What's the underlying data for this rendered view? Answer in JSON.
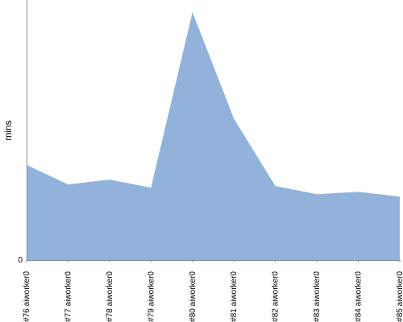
{
  "chart_data": {
    "type": "area",
    "title": "",
    "xlabel": "",
    "ylabel": "mins",
    "categories": [
      "#76 aiworker0",
      "#77 aiworker0",
      "#78 aiworker0",
      "#79 aiworker0",
      "#80 aiworker0",
      "#81 aiworker0",
      "#82 aiworker0",
      "#83 aiworker0",
      "#84 aiworker0",
      "#85 aiworker0"
    ],
    "series": [
      {
        "values": [
          11.7,
          9.3,
          9.9,
          8.9,
          30.5,
          17.4,
          9.1,
          8.1,
          8.4,
          7.8
        ]
      }
    ],
    "ylim": [
      0,
      32
    ],
    "yticks": [
      {
        "value": 0,
        "label": "0"
      }
    ],
    "grid": false,
    "legend": "none",
    "colors": {
      "area": "#91b3db",
      "axis": "#888888"
    }
  }
}
